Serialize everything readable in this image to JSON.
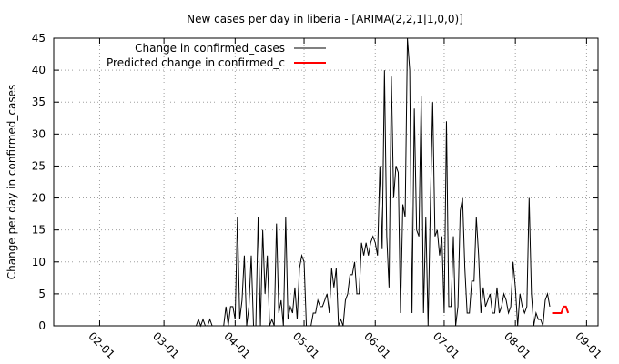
{
  "chart_data": {
    "type": "line",
    "title": "New cases per day in liberia -  [ARIMA(2,2,1|1,0,0)]",
    "xlabel": "",
    "ylabel": "Change per day in confirmed_cases",
    "ylim": [
      0,
      45
    ],
    "xlim": [
      "2014-01-12",
      "2014-09-06"
    ],
    "y_ticks": [
      0,
      5,
      10,
      15,
      20,
      25,
      30,
      35,
      40,
      45
    ],
    "x_ticks": [
      {
        "date": "2014-02-01",
        "label": "02-01"
      },
      {
        "date": "2014-03-01",
        "label": "03-01"
      },
      {
        "date": "2014-04-01",
        "label": "04-01"
      },
      {
        "date": "2014-05-01",
        "label": "05-01"
      },
      {
        "date": "2014-06-01",
        "label": "06-01"
      },
      {
        "date": "2014-07-01",
        "label": "07-01"
      },
      {
        "date": "2014-08-01",
        "label": "08-01"
      },
      {
        "date": "2014-09-01",
        "label": "09-01"
      }
    ],
    "grid": true,
    "legend_position": "top-left",
    "series": [
      {
        "name": "Change in confirmed_cases",
        "color": "#000000",
        "points": [
          [
            "2014-01-14",
            0
          ],
          [
            "2014-03-15",
            0
          ],
          [
            "2014-03-16",
            1
          ],
          [
            "2014-03-17",
            0
          ],
          [
            "2014-03-18",
            1
          ],
          [
            "2014-03-19",
            0
          ],
          [
            "2014-03-20",
            0
          ],
          [
            "2014-03-21",
            1
          ],
          [
            "2014-03-22",
            0
          ],
          [
            "2014-03-27",
            0
          ],
          [
            "2014-03-28",
            3
          ],
          [
            "2014-03-29",
            0
          ],
          [
            "2014-03-30",
            3
          ],
          [
            "2014-03-31",
            3
          ],
          [
            "2014-04-01",
            1
          ],
          [
            "2014-04-02",
            17
          ],
          [
            "2014-04-03",
            1
          ],
          [
            "2014-04-04",
            4
          ],
          [
            "2014-04-05",
            11
          ],
          [
            "2014-04-06",
            0
          ],
          [
            "2014-04-07",
            3
          ],
          [
            "2014-04-08",
            11
          ],
          [
            "2014-04-09",
            0
          ],
          [
            "2014-04-10",
            0
          ],
          [
            "2014-04-11",
            17
          ],
          [
            "2014-04-12",
            0
          ],
          [
            "2014-04-13",
            15
          ],
          [
            "2014-04-14",
            5
          ],
          [
            "2014-04-15",
            11
          ],
          [
            "2014-04-16",
            0
          ],
          [
            "2014-04-17",
            1
          ],
          [
            "2014-04-18",
            0
          ],
          [
            "2014-04-19",
            16
          ],
          [
            "2014-04-20",
            2
          ],
          [
            "2014-04-21",
            4
          ],
          [
            "2014-04-22",
            0
          ],
          [
            "2014-04-23",
            17
          ],
          [
            "2014-04-24",
            1
          ],
          [
            "2014-04-25",
            3
          ],
          [
            "2014-04-26",
            2
          ],
          [
            "2014-04-27",
            6
          ],
          [
            "2014-04-28",
            1
          ],
          [
            "2014-04-29",
            9
          ],
          [
            "2014-04-30",
            11
          ],
          [
            "2014-05-01",
            10
          ],
          [
            "2014-05-02",
            0
          ],
          [
            "2014-05-03",
            0
          ],
          [
            "2014-05-04",
            0
          ],
          [
            "2014-05-05",
            2
          ],
          [
            "2014-05-06",
            2
          ],
          [
            "2014-05-07",
            4
          ],
          [
            "2014-05-08",
            3
          ],
          [
            "2014-05-09",
            3
          ],
          [
            "2014-05-10",
            4
          ],
          [
            "2014-05-11",
            5
          ],
          [
            "2014-05-12",
            2
          ],
          [
            "2014-05-13",
            9
          ],
          [
            "2014-05-14",
            6
          ],
          [
            "2014-05-15",
            9
          ],
          [
            "2014-05-16",
            0
          ],
          [
            "2014-05-17",
            1
          ],
          [
            "2014-05-18",
            0
          ],
          [
            "2014-05-19",
            4
          ],
          [
            "2014-05-20",
            5
          ],
          [
            "2014-05-21",
            8
          ],
          [
            "2014-05-22",
            8
          ],
          [
            "2014-05-23",
            10
          ],
          [
            "2014-05-24",
            5
          ],
          [
            "2014-05-25",
            5
          ],
          [
            "2014-05-26",
            13
          ],
          [
            "2014-05-27",
            11
          ],
          [
            "2014-05-28",
            13
          ],
          [
            "2014-05-29",
            11
          ],
          [
            "2014-05-30",
            13
          ],
          [
            "2014-05-31",
            14
          ],
          [
            "2014-06-01",
            13
          ],
          [
            "2014-06-02",
            11
          ],
          [
            "2014-06-03",
            25
          ],
          [
            "2014-06-04",
            12
          ],
          [
            "2014-06-05",
            40
          ],
          [
            "2014-06-06",
            14
          ],
          [
            "2014-06-07",
            6
          ],
          [
            "2014-06-08",
            39
          ],
          [
            "2014-06-09",
            20
          ],
          [
            "2014-06-10",
            25
          ],
          [
            "2014-06-11",
            24
          ],
          [
            "2014-06-12",
            2
          ],
          [
            "2014-06-13",
            19
          ],
          [
            "2014-06-14",
            17
          ],
          [
            "2014-06-15",
            45
          ],
          [
            "2014-06-16",
            40
          ],
          [
            "2014-06-17",
            2
          ],
          [
            "2014-06-18",
            34
          ],
          [
            "2014-06-19",
            15
          ],
          [
            "2014-06-20",
            14
          ],
          [
            "2014-06-21",
            36
          ],
          [
            "2014-06-22",
            2
          ],
          [
            "2014-06-23",
            17
          ],
          [
            "2014-06-24",
            0
          ],
          [
            "2014-06-25",
            19
          ],
          [
            "2014-06-26",
            35
          ],
          [
            "2014-06-27",
            14
          ],
          [
            "2014-06-28",
            15
          ],
          [
            "2014-06-29",
            11
          ],
          [
            "2014-06-30",
            14
          ],
          [
            "2014-07-01",
            2
          ],
          [
            "2014-07-02",
            32
          ],
          [
            "2014-07-03",
            3
          ],
          [
            "2014-07-04",
            3
          ],
          [
            "2014-07-05",
            14
          ],
          [
            "2014-07-06",
            0
          ],
          [
            "2014-07-07",
            3
          ],
          [
            "2014-07-08",
            18
          ],
          [
            "2014-07-09",
            20
          ],
          [
            "2014-07-10",
            9
          ],
          [
            "2014-07-11",
            2
          ],
          [
            "2014-07-12",
            2
          ],
          [
            "2014-07-13",
            7
          ],
          [
            "2014-07-14",
            7
          ],
          [
            "2014-07-15",
            17
          ],
          [
            "2014-07-16",
            11
          ],
          [
            "2014-07-17",
            2
          ],
          [
            "2014-07-18",
            6
          ],
          [
            "2014-07-19",
            3
          ],
          [
            "2014-07-20",
            4
          ],
          [
            "2014-07-21",
            5
          ],
          [
            "2014-07-22",
            2
          ],
          [
            "2014-07-23",
            2
          ],
          [
            "2014-07-24",
            6
          ],
          [
            "2014-07-25",
            2
          ],
          [
            "2014-07-26",
            3
          ],
          [
            "2014-07-27",
            5
          ],
          [
            "2014-07-28",
            4
          ],
          [
            "2014-07-29",
            2
          ],
          [
            "2014-07-30",
            3
          ],
          [
            "2014-07-31",
            10
          ],
          [
            "2014-08-01",
            6
          ],
          [
            "2014-08-02",
            0
          ],
          [
            "2014-08-03",
            5
          ],
          [
            "2014-08-04",
            3
          ],
          [
            "2014-08-05",
            2
          ],
          [
            "2014-08-06",
            3
          ],
          [
            "2014-08-07",
            20
          ],
          [
            "2014-08-08",
            5
          ],
          [
            "2014-08-09",
            0
          ],
          [
            "2014-08-10",
            2
          ],
          [
            "2014-08-11",
            1
          ],
          [
            "2014-08-12",
            1
          ],
          [
            "2014-08-13",
            0
          ],
          [
            "2014-08-14",
            4
          ],
          [
            "2014-08-15",
            5
          ],
          [
            "2014-08-16",
            3
          ]
        ]
      },
      {
        "name": "Predicted change in confirmed_c",
        "color": "#ff0000",
        "points": [
          [
            "2014-08-17",
            2
          ],
          [
            "2014-08-18",
            2
          ],
          [
            "2014-08-19",
            2
          ],
          [
            "2014-08-20",
            2
          ],
          [
            "2014-08-21",
            2
          ],
          [
            "2014-08-22",
            3
          ],
          [
            "2014-08-23",
            3
          ],
          [
            "2014-08-24",
            2
          ]
        ]
      }
    ]
  }
}
